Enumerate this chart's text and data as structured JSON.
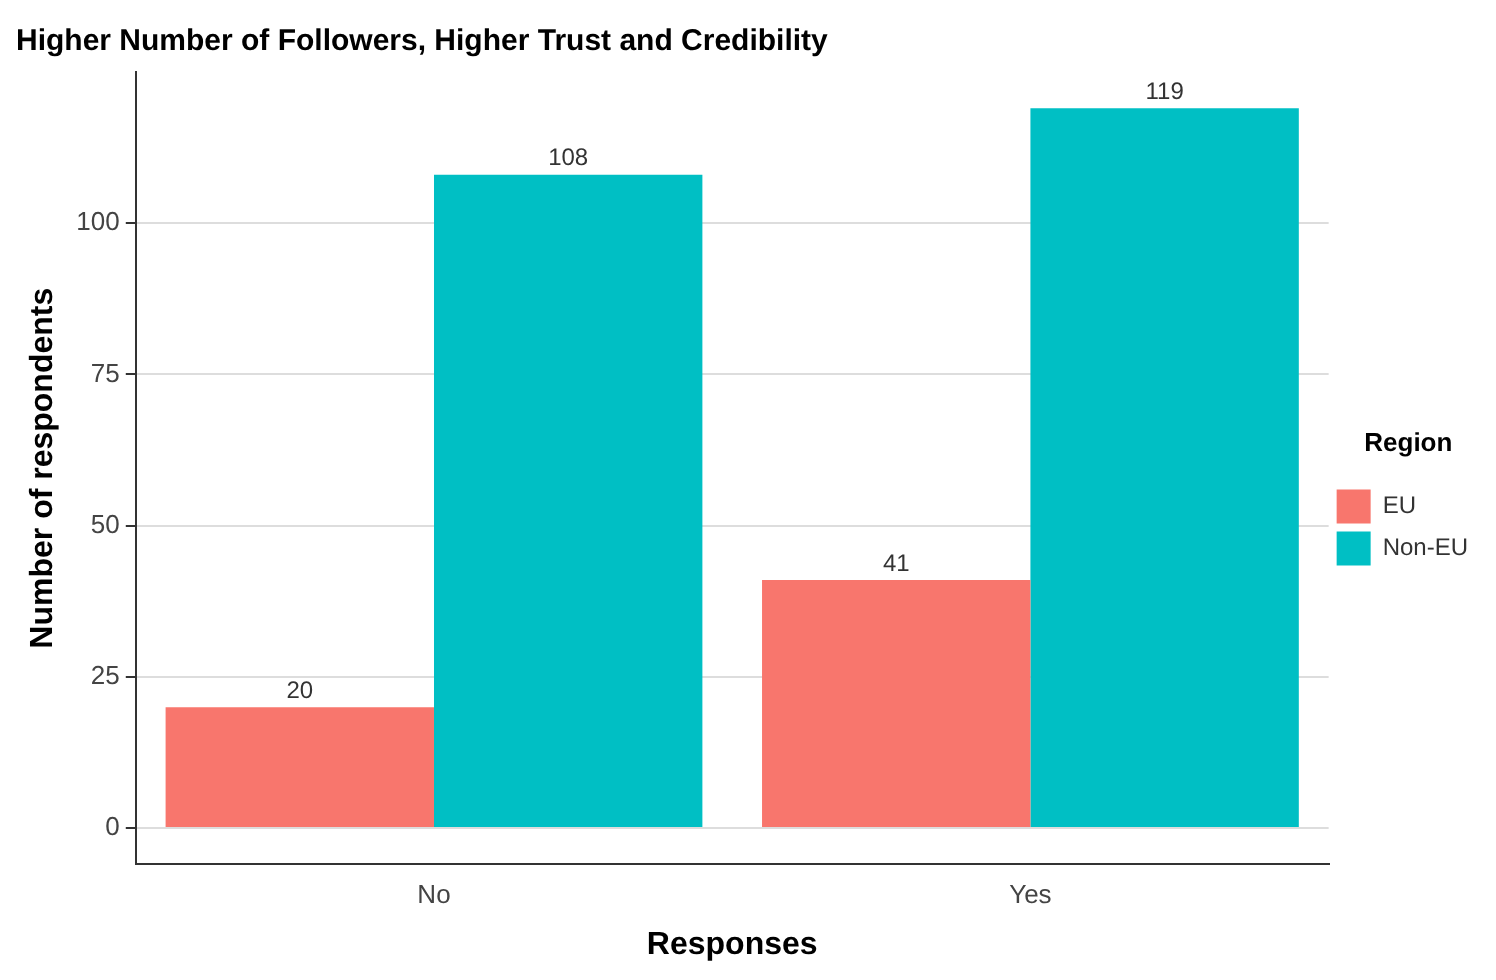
{
  "chart_data": {
    "type": "bar",
    "title": "Higher Number of Followers, Higher Trust and Credibility",
    "xlabel": "Responses",
    "ylabel": "Number of respondents",
    "legend_title": "Region",
    "categories": [
      "No",
      "Yes"
    ],
    "series": [
      {
        "name": "EU",
        "color": "#f8766d",
        "values": [
          20,
          41
        ]
      },
      {
        "name": "Non-EU",
        "color": "#00bfc4",
        "values": [
          108,
          119
        ]
      }
    ],
    "ylim": [
      -6,
      125
    ],
    "yticks": [
      0,
      25,
      50,
      75,
      100
    ],
    "grid": "y",
    "legend": "right",
    "data_labels": true
  }
}
